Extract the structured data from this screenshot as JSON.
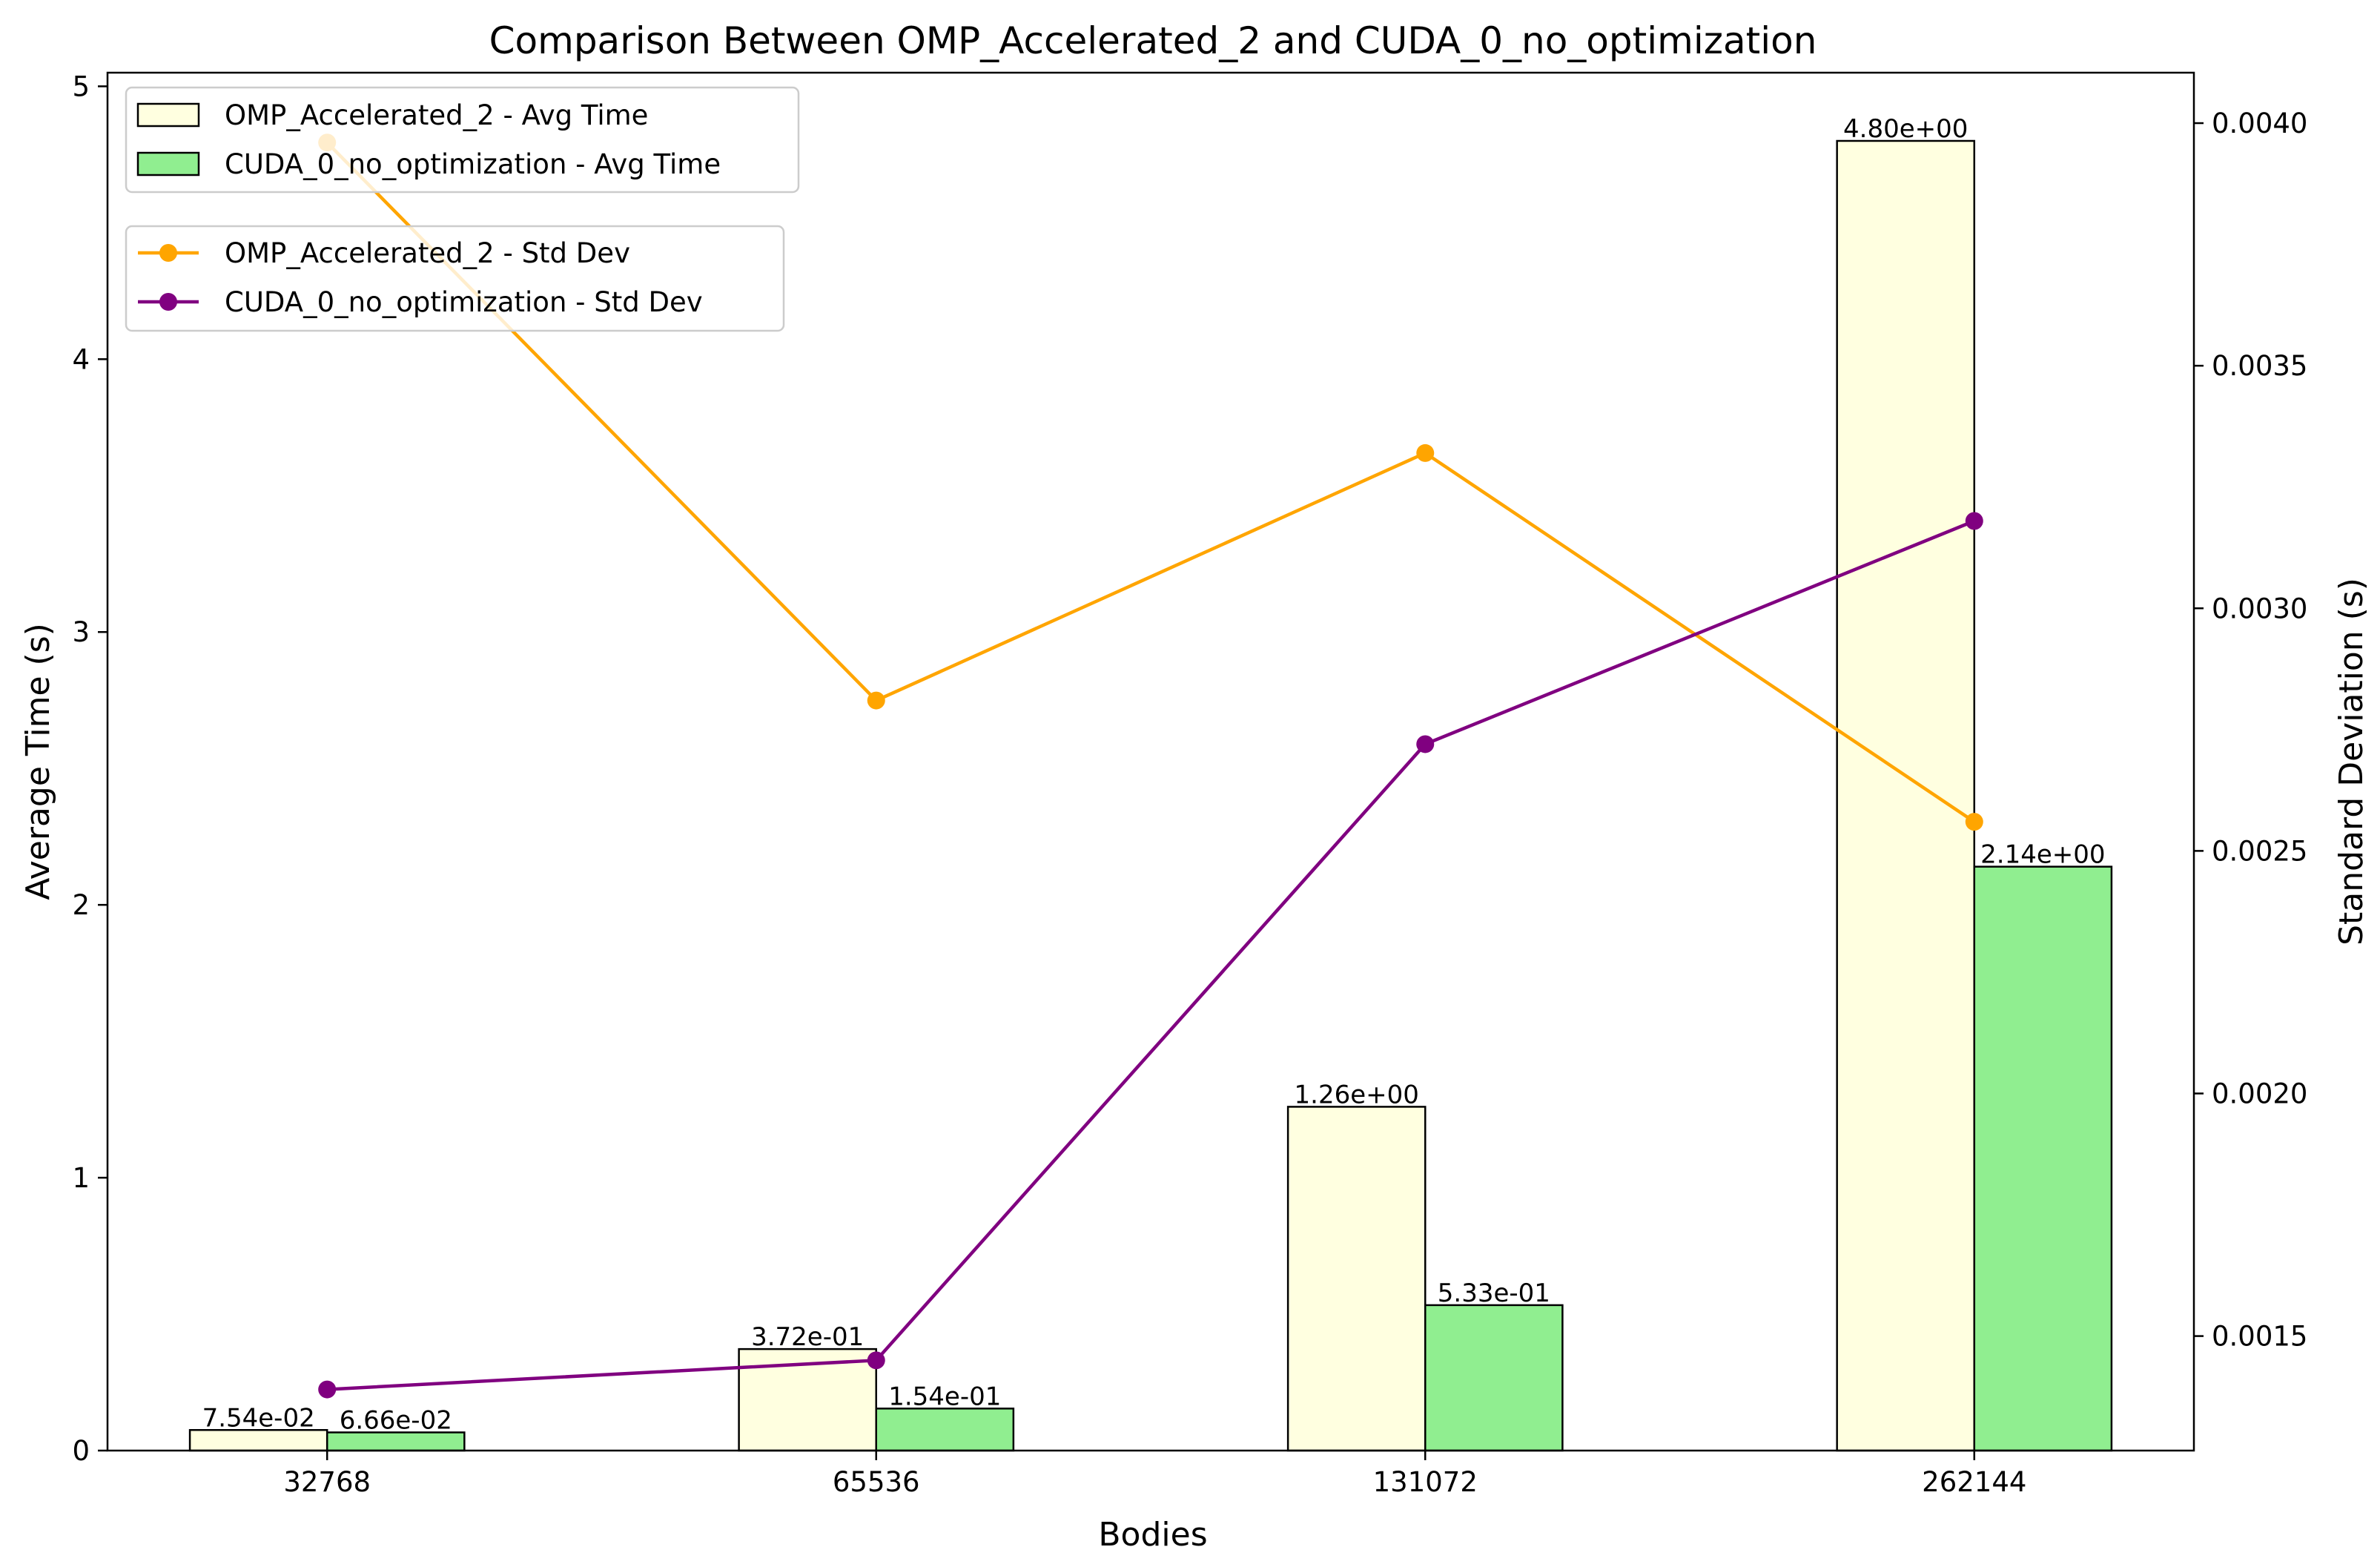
{
  "chart_data": {
    "type": "bar",
    "title": "Comparison Between OMP_Accelerated_2 and CUDA_0_no_optimization",
    "xlabel": "Bodies",
    "ylabel": "Average Time (s)",
    "y2label": "Standard Deviation (s)",
    "categories": [
      "32768",
      "65536",
      "131072",
      "262144"
    ],
    "ylim": [
      0,
      5.05
    ],
    "yticks": [
      0,
      1,
      2,
      3,
      4,
      5
    ],
    "ytick_labels": [
      "0",
      "1",
      "2",
      "3",
      "4",
      "5"
    ],
    "y2lim": [
      0.001264,
      0.004104
    ],
    "y2ticks": [
      0.0015,
      0.002,
      0.0025,
      0.003,
      0.0035,
      0.004
    ],
    "y2tick_labels": [
      "0.0015",
      "0.0020",
      "0.0025",
      "0.0030",
      "0.0035",
      "0.0040"
    ],
    "grid": false,
    "bar_series": [
      {
        "name": "OMP_Accelerated_2 - Avg Time",
        "color": "#ffffe0",
        "values": [
          0.0754,
          0.372,
          1.26,
          4.8
        ],
        "labels": [
          "7.54e-02",
          "3.72e-01",
          "1.26e+00",
          "4.80e+00"
        ]
      },
      {
        "name": "CUDA_0_no_optimization - Avg Time",
        "color": "#90ee90",
        "values": [
          0.0666,
          0.154,
          0.533,
          2.14
        ],
        "labels": [
          "6.66e-02",
          "1.54e-01",
          "5.33e-01",
          "2.14e+00"
        ]
      }
    ],
    "line_series": [
      {
        "name": "OMP_Accelerated_2 - Std Dev",
        "color": "#ffa500",
        "axis": "right",
        "values": [
          0.00396,
          0.00281,
          0.00332,
          0.00256
        ]
      },
      {
        "name": "CUDA_0_no_optimization - Std Dev",
        "color": "#800080",
        "axis": "right",
        "values": [
          0.00139,
          0.00145,
          0.00272,
          0.00318
        ]
      }
    ],
    "legends": [
      {
        "placement": "top-left",
        "entries": [
          "OMP_Accelerated_2 - Avg Time",
          "CUDA_0_no_optimization - Avg Time"
        ]
      },
      {
        "placement": "upper-left",
        "entries": [
          "OMP_Accelerated_2 - Std Dev",
          "CUDA_0_no_optimization - Std Dev"
        ]
      }
    ]
  }
}
